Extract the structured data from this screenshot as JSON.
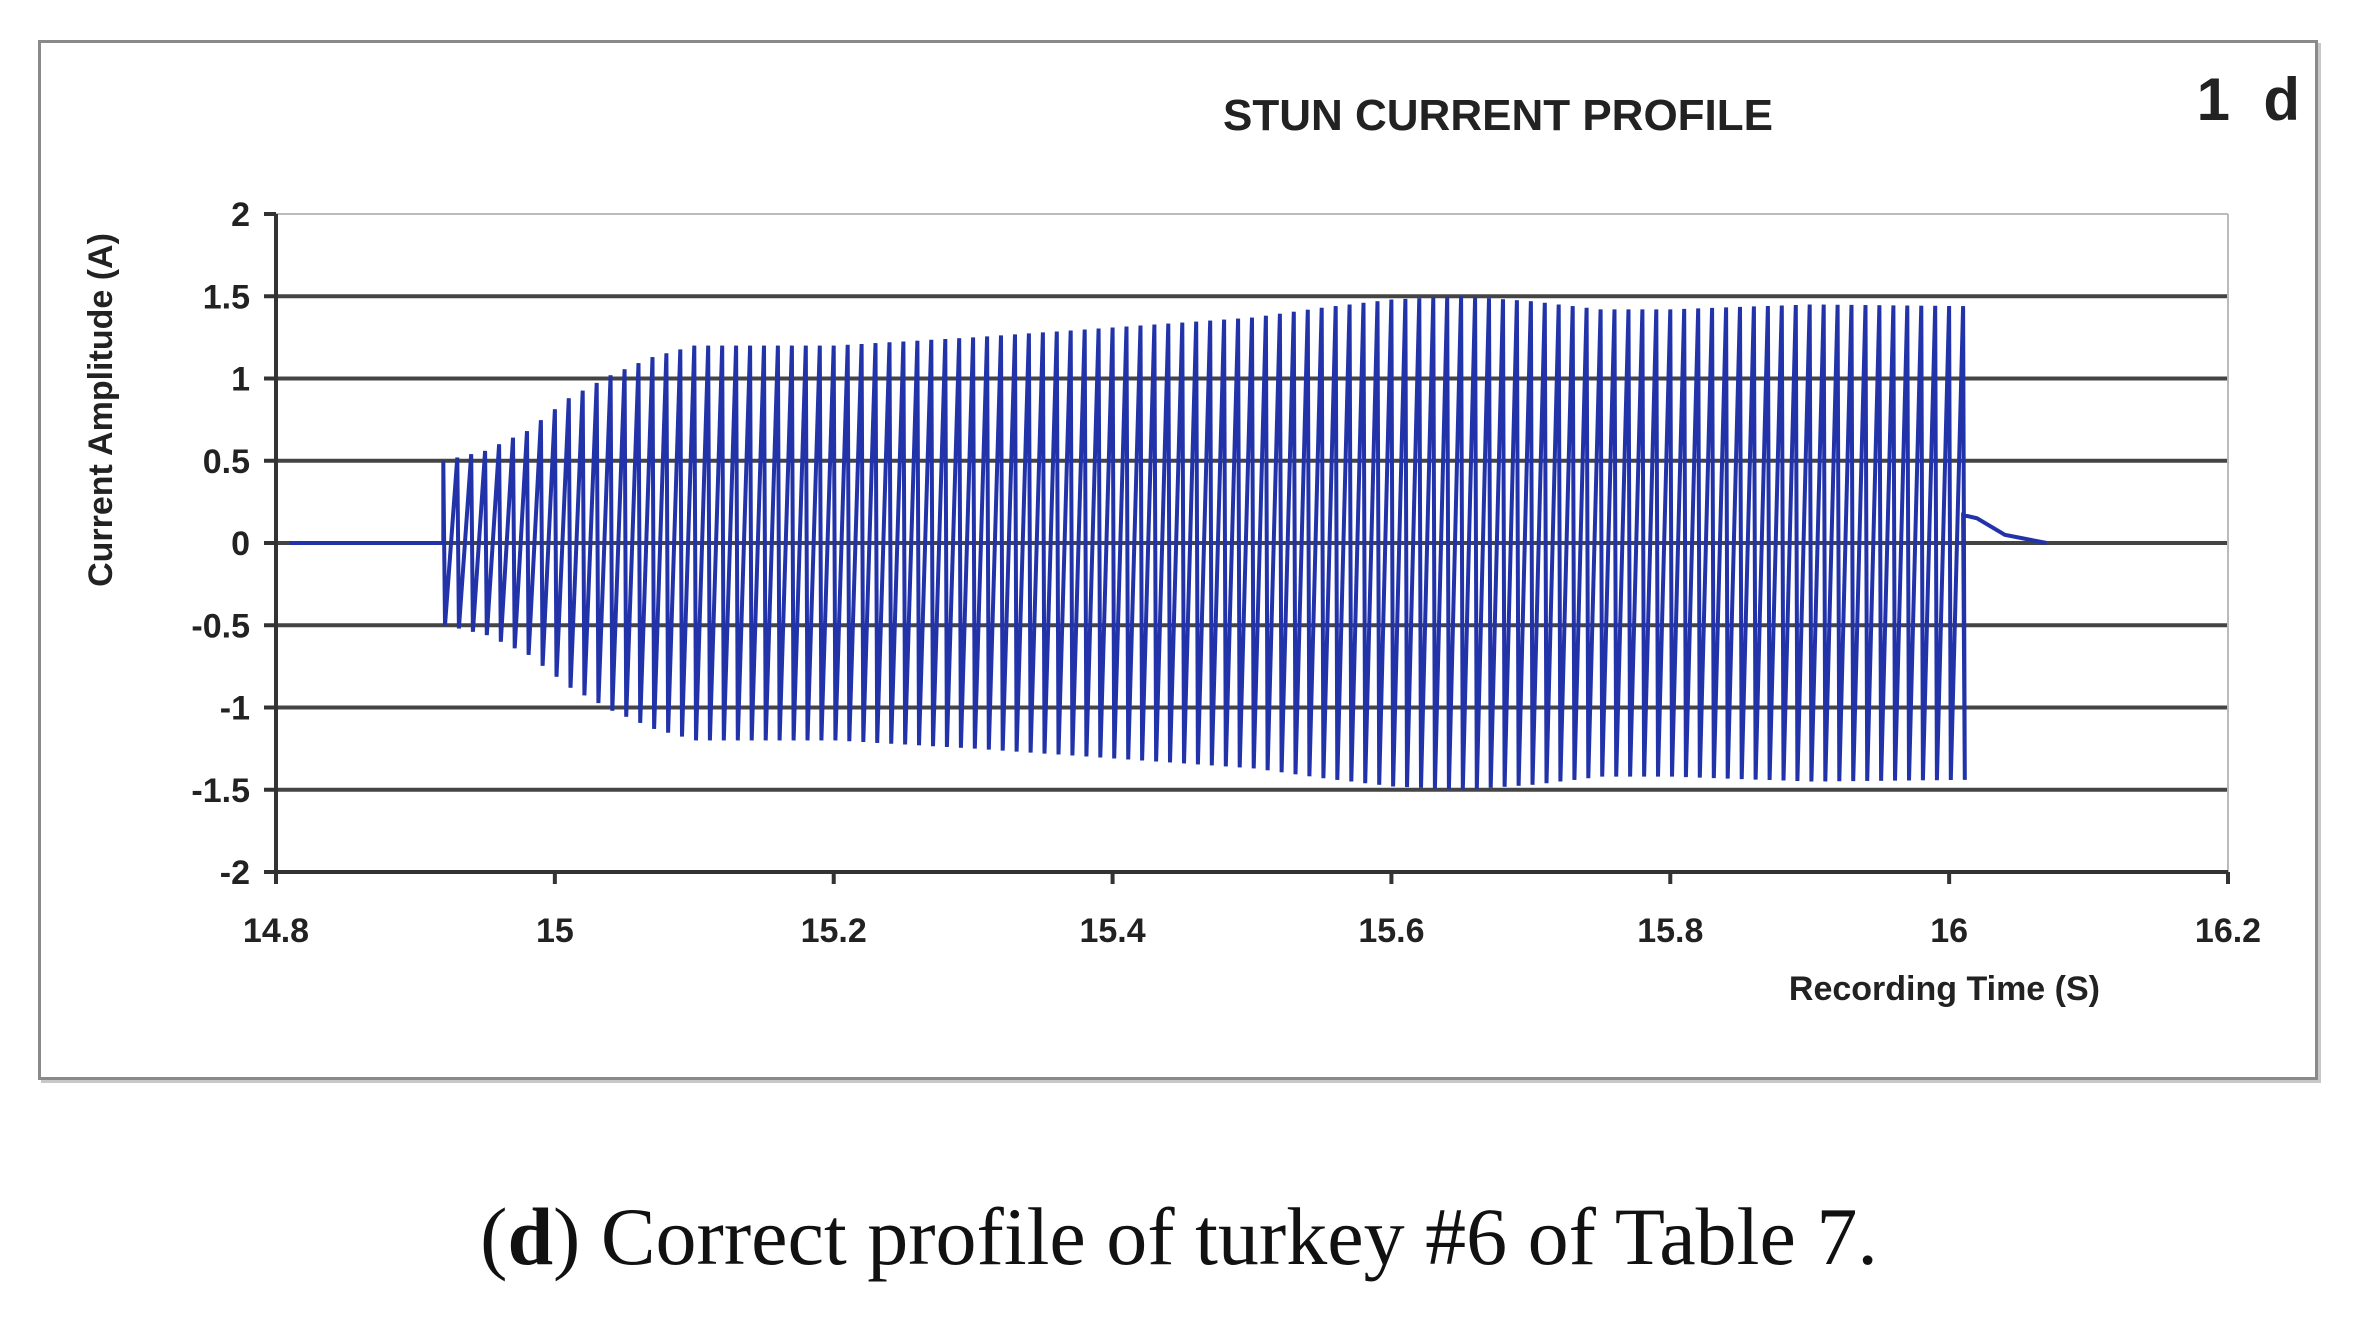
{
  "panel_id": "1  d",
  "caption": {
    "open_paren": "(",
    "letter": "d",
    "rest": ") Correct profile of turkey #6 of Table 7."
  },
  "colors": {
    "signal": "#2233aa",
    "gridline": "#444444",
    "axis": "#333333"
  },
  "chart_data": {
    "type": "line",
    "title": "STUN CURRENT PROFILE",
    "xlabel": "Recording Time (S)",
    "ylabel": "Current Amplitude (A)",
    "xlim": [
      14.8,
      16.2
    ],
    "ylim": [
      -2,
      2
    ],
    "xticks": [
      14.8,
      15,
      15.2,
      15.4,
      15.6,
      15.8,
      16,
      16.2
    ],
    "xtick_labels": [
      "14.8",
      "15",
      "15.2",
      "15.4",
      "15.6",
      "15.8",
      "16",
      "16.2"
    ],
    "yticks": [
      2,
      1.5,
      1,
      0.5,
      0,
      -0.5,
      -1,
      -1.5,
      -2
    ],
    "ytick_labels": [
      "2",
      "1.5",
      "1",
      "0.5",
      "0",
      "-0.5",
      "-1",
      "-1.5",
      "-2"
    ],
    "grid": "horizontal",
    "legend": "none",
    "series": [
      {
        "baseline_before": {
          "x": [
            14.81,
            14.92
          ],
          "y": 0.0
        },
        "oscillation": {
          "x_start": 14.92,
          "x_end": 16.01,
          "period": 0.01,
          "envelope_x": [
            14.92,
            14.95,
            14.98,
            15.01,
            15.04,
            15.07,
            15.1,
            15.2,
            15.3,
            15.4,
            15.5,
            15.55,
            15.6,
            15.65,
            15.7,
            15.75,
            15.8,
            15.9,
            16.01
          ],
          "envelope_amplitude": [
            0.5,
            0.56,
            0.68,
            0.88,
            1.02,
            1.13,
            1.2,
            1.2,
            1.25,
            1.31,
            1.37,
            1.43,
            1.48,
            1.5,
            1.47,
            1.42,
            1.42,
            1.45,
            1.44
          ]
        },
        "decay_after": {
          "x": [
            16.01,
            16.02,
            16.04,
            16.07
          ],
          "y": [
            0.17,
            0.15,
            0.05,
            0.0
          ]
        }
      }
    ]
  }
}
